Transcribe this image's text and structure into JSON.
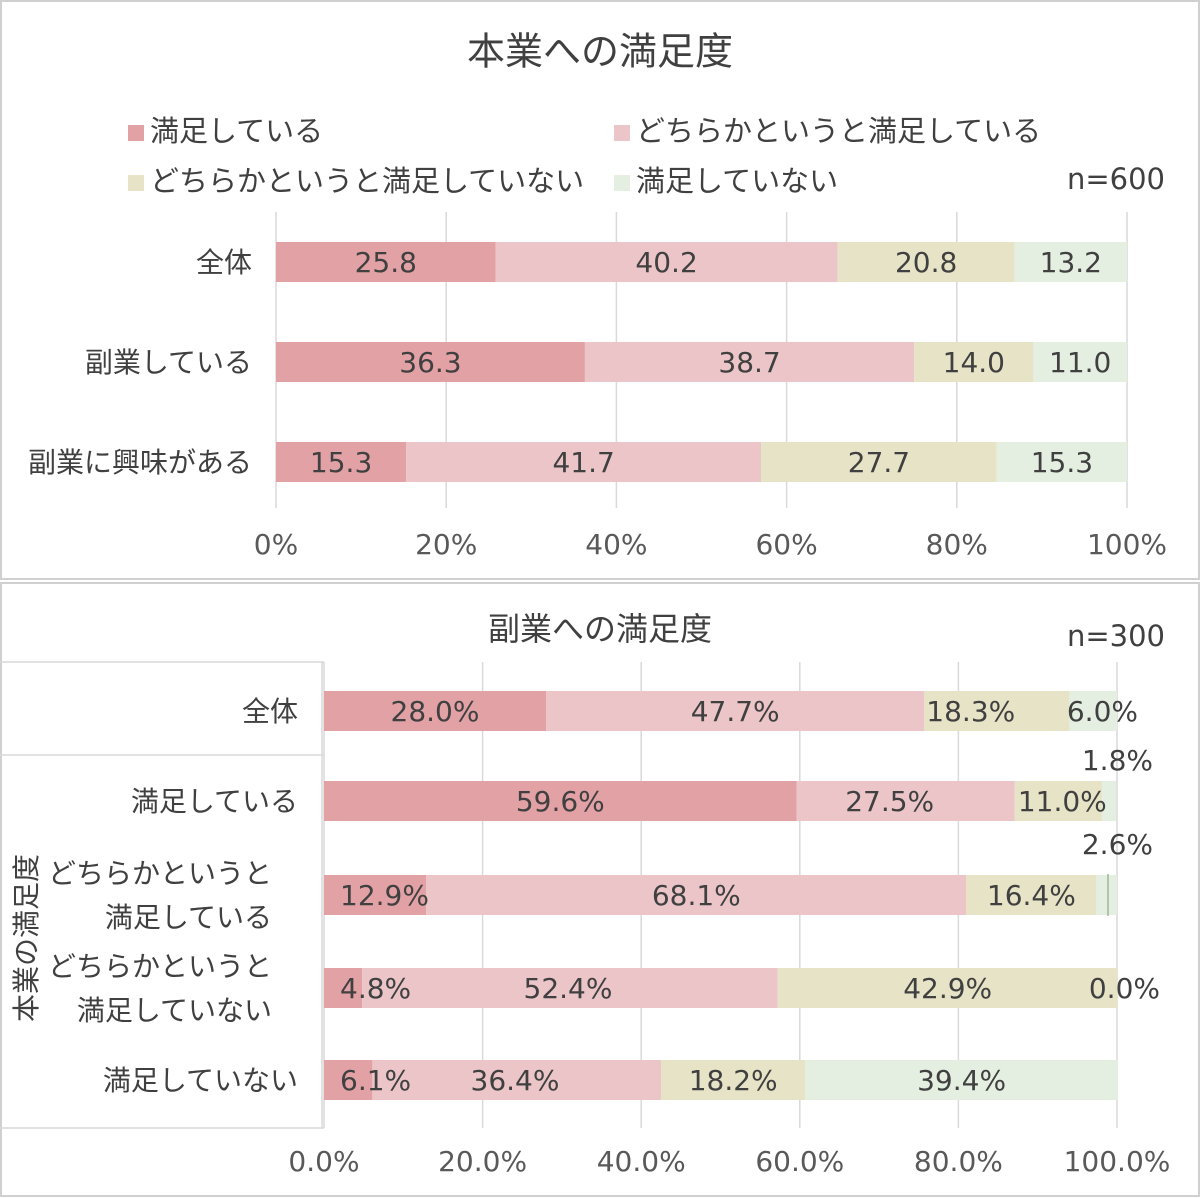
{
  "chart_data": [
    {
      "type": "bar",
      "stacked": true,
      "orientation": "horizontal",
      "title": "本業への満足度",
      "sample_size": "n=600",
      "legend": [
        "満足している",
        "どちらかというと満足している",
        "どちらかというと満足していない",
        "満足していない"
      ],
      "legend_position": "top",
      "categories": [
        "全体",
        "副業している",
        "副業に興味がある"
      ],
      "series": [
        {
          "name": "満足している",
          "color": "#e2a1a5",
          "values": [
            25.8,
            36.3,
            15.3
          ]
        },
        {
          "name": "どちらかというと満足している",
          "color": "#ebc5c8",
          "values": [
            40.2,
            38.7,
            41.7
          ]
        },
        {
          "name": "どちらかというと満足していない",
          "color": "#e7e3c6",
          "values": [
            20.8,
            14.0,
            27.7
          ]
        },
        {
          "name": "満足していない",
          "color": "#e4efe1",
          "values": [
            13.2,
            11.0,
            15.3
          ]
        }
      ],
      "value_labels": [
        [
          "25.8",
          "36.3",
          "15.3"
        ],
        [
          "40.2",
          "38.7",
          "41.7"
        ],
        [
          "20.8",
          "14.0",
          "27.7"
        ],
        [
          "13.2",
          "11.0",
          "15.3"
        ]
      ],
      "xlim": [
        0,
        100
      ],
      "xticks": [
        "0%",
        "20%",
        "40%",
        "60%",
        "80%",
        "100%"
      ],
      "grid": true
    },
    {
      "type": "bar",
      "stacked": true,
      "orientation": "horizontal",
      "title": "副業への満足度",
      "sample_size": "n=300",
      "ylabel": "本業の満足度",
      "categories": [
        "全体",
        "満足している",
        "どちらかというと\n満足している",
        "どちらかというと\n満足していない",
        "満足していない"
      ],
      "series": [
        {
          "name": "満足している",
          "color": "#e2a1a5",
          "values": [
            28.0,
            59.6,
            12.9,
            4.8,
            6.1
          ]
        },
        {
          "name": "どちらかというと満足している",
          "color": "#ebc5c8",
          "values": [
            47.7,
            27.5,
            68.1,
            52.4,
            36.4
          ]
        },
        {
          "name": "どちらかというと満足していない",
          "color": "#e7e3c6",
          "values": [
            18.3,
            11.0,
            16.4,
            42.9,
            18.2
          ]
        },
        {
          "name": "満足していない",
          "color": "#e4efe1",
          "values": [
            6.0,
            1.8,
            2.6,
            0.0,
            39.4
          ]
        }
      ],
      "value_labels": [
        [
          "28.0%",
          "59.6%",
          "12.9%",
          "4.8%",
          "6.1%"
        ],
        [
          "47.7%",
          "27.5%",
          "68.1%",
          "52.4%",
          "36.4%"
        ],
        [
          "18.3%",
          "11.0%",
          "16.4%",
          "42.9%",
          "18.2%"
        ],
        [
          "6.0%",
          "1.8%",
          "2.6%",
          "0.0%",
          "39.4%"
        ]
      ],
      "xlim": [
        0,
        100
      ],
      "xticks": [
        "0.0%",
        "20.0%",
        "40.0%",
        "60.0%",
        "80.0%",
        "100.0%"
      ],
      "grid": true
    }
  ]
}
